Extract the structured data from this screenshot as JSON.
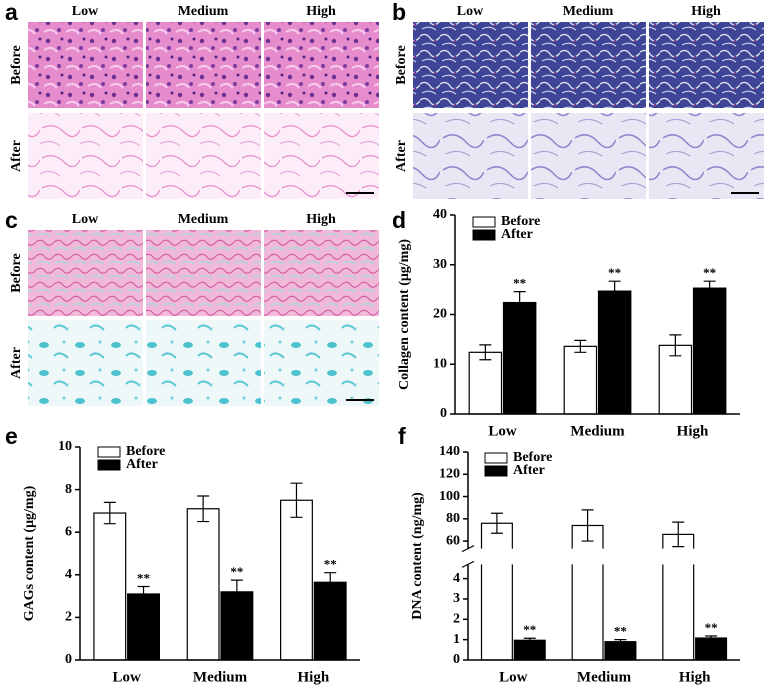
{
  "panels": [
    {
      "letter": "a",
      "columns": [
        "Low",
        "Medium",
        "High"
      ],
      "rows": [
        "Before",
        "After"
      ]
    },
    {
      "letter": "b",
      "columns": [
        "Low",
        "Medium",
        "High"
      ],
      "rows": [
        "Before",
        "After"
      ]
    },
    {
      "letter": "c",
      "columns": [
        "Low",
        "Medium",
        "High"
      ],
      "rows": [
        "Before",
        "After"
      ]
    }
  ],
  "chart_data": [
    {
      "type": "bar",
      "panel_label": "d",
      "y_label": "Collagen content (μg/mg)",
      "categories": [
        "Low",
        "Medium",
        "High"
      ],
      "ylim": [
        0,
        40
      ],
      "yticks": [
        0,
        10,
        20,
        30,
        40
      ],
      "series": [
        {
          "name": "Before",
          "color": "#ffffff",
          "values": [
            12.4,
            13.6,
            13.8
          ],
          "errors": [
            1.5,
            1.2,
            2.1
          ]
        },
        {
          "name": "After",
          "color": "#000000",
          "values": [
            22.4,
            24.7,
            25.3
          ],
          "errors": [
            2.2,
            2.0,
            1.4
          ],
          "labels": [
            "**",
            "**",
            "**"
          ]
        }
      ]
    },
    {
      "type": "bar",
      "panel_label": "e",
      "y_label": "GAGs content (μg/mg)",
      "categories": [
        "Low",
        "Medium",
        "High"
      ],
      "ylim": [
        0,
        10
      ],
      "yticks": [
        0,
        2,
        4,
        6,
        8,
        10
      ],
      "series": [
        {
          "name": "Before",
          "color": "#ffffff",
          "values": [
            6.9,
            7.1,
            7.5
          ],
          "errors": [
            0.5,
            0.6,
            0.8
          ]
        },
        {
          "name": "After",
          "color": "#000000",
          "values": [
            3.1,
            3.2,
            3.65
          ],
          "errors": [
            0.35,
            0.55,
            0.45
          ],
          "labels": [
            "**",
            "**",
            "**"
          ]
        }
      ]
    },
    {
      "type": "bar",
      "panel_label": "f",
      "y_label": "DNA content (ng/mg)",
      "categories": [
        "Low",
        "Medium",
        "High"
      ],
      "ylim": [
        0,
        140
      ],
      "yticks": [
        0,
        1,
        2,
        3,
        4,
        60,
        80,
        100,
        120,
        140
      ],
      "axis_break": [
        4.6,
        55
      ],
      "series": [
        {
          "name": "Before",
          "color": "#ffffff",
          "values": [
            76,
            74,
            66
          ],
          "errors": [
            9,
            14,
            11
          ]
        },
        {
          "name": "After",
          "color": "#000000",
          "values": [
            0.97,
            0.9,
            1.08
          ],
          "errors": [
            0.1,
            0.1,
            0.1
          ],
          "labels": [
            "**",
            "**",
            "**"
          ]
        }
      ]
    }
  ]
}
